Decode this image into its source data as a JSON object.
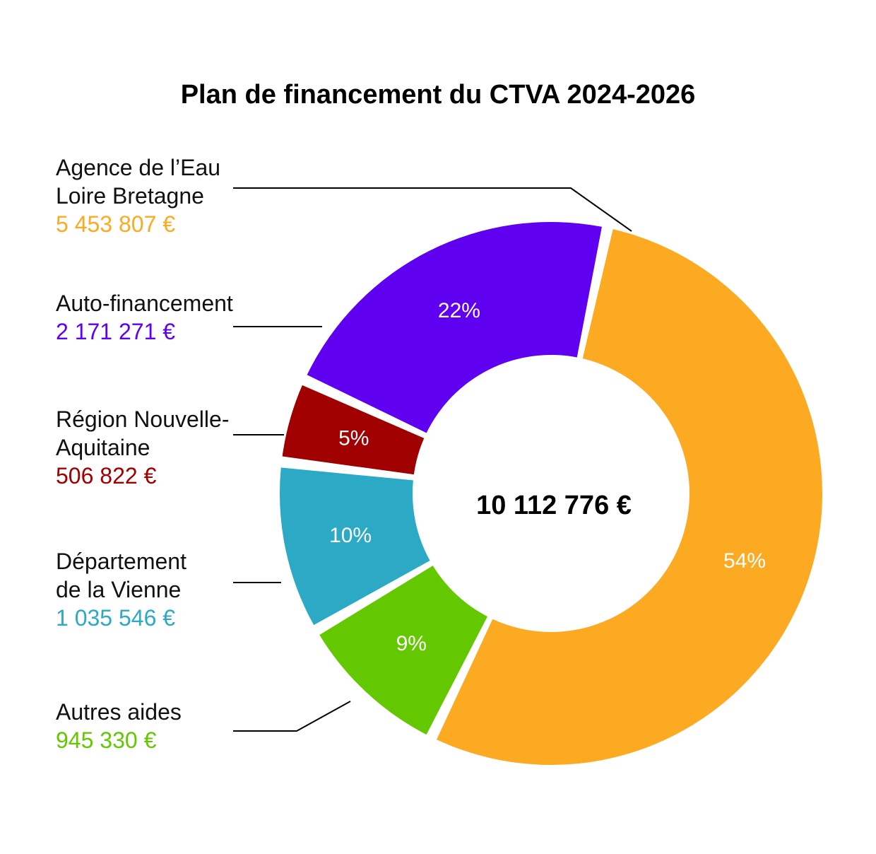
{
  "chart_data": {
    "type": "pie",
    "title": "Plan de financement du CTVA 2024-2026",
    "center_label": "10 112 776 €",
    "slices": [
      {
        "label_lines": [
          "Agence de l’Eau",
          "Loire Bretagne"
        ],
        "amount": "5 453 807 €",
        "value": 5453807,
        "percent_label": "54%",
        "color": "#FBAA22"
      },
      {
        "label_lines": [
          "Autres aides"
        ],
        "amount": "945 330 €",
        "value": 945330,
        "percent_label": "9%",
        "color": "#64C800"
      },
      {
        "label_lines": [
          "Département",
          "de la Vienne"
        ],
        "amount": "1 035 546 €",
        "value": 1035546,
        "percent_label": "10%",
        "color": "#2CA9C5"
      },
      {
        "label_lines": [
          "Région Nouvelle-",
          "Aquitaine"
        ],
        "amount": "506 822 €",
        "value": 506822,
        "percent_label": "5%",
        "color": "#A00000"
      },
      {
        "label_lines": [
          "Auto-financement"
        ],
        "amount": "2 171 271 €",
        "value": 2171271,
        "percent_label": "22%",
        "color": "#5F00F0"
      }
    ]
  }
}
